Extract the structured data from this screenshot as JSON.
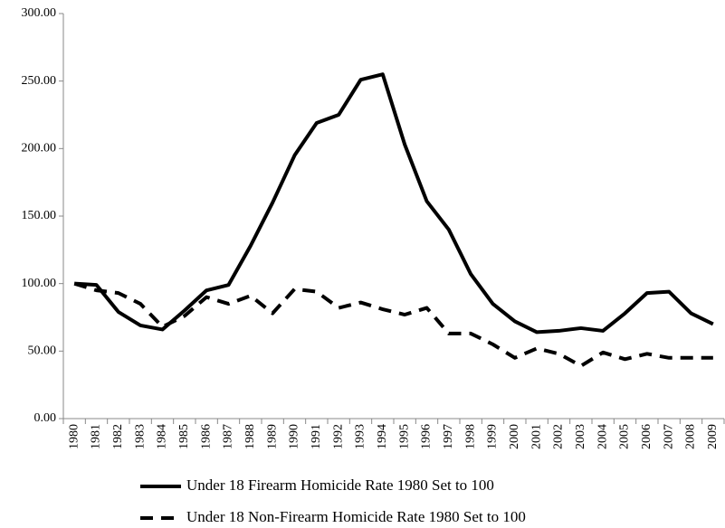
{
  "chart_data": {
    "type": "line",
    "categories": [
      "1980",
      "1981",
      "1982",
      "1983",
      "1984",
      "1985",
      "1986",
      "1987",
      "1988",
      "1989",
      "1990",
      "1991",
      "1992",
      "1993",
      "1994",
      "1995",
      "1996",
      "1997",
      "1998",
      "1999",
      "2000",
      "2001",
      "2002",
      "2003",
      "2004",
      "2005",
      "2006",
      "2007",
      "2008",
      "2009"
    ],
    "series": [
      {
        "name": "Under 18 Firearm Homicide Rate 1980 Set to 100",
        "color": "#000000",
        "style": "solid",
        "values": [
          100,
          99,
          79,
          69,
          66,
          80,
          95,
          99,
          128,
          160,
          195,
          219,
          225,
          251,
          255,
          203,
          161,
          140,
          107,
          85,
          72,
          64,
          65,
          67,
          65,
          78,
          93,
          94,
          78,
          70
        ]
      },
      {
        "name": "Under 18 Non-Firearm Homicide Rate 1980 Set to 100",
        "color": "#000000",
        "style": "dashed",
        "values": [
          100,
          95,
          93,
          85,
          68,
          76,
          90,
          85,
          91,
          78,
          96,
          94,
          82,
          86,
          81,
          77,
          82,
          63,
          63,
          55,
          45,
          52,
          48,
          39,
          49,
          44,
          48,
          45,
          45,
          45
        ]
      }
    ],
    "ylim": [
      0,
      300
    ],
    "yticks": [
      {
        "value": 0,
        "label": "0.00"
      },
      {
        "value": 50,
        "label": "50.00"
      },
      {
        "value": 100,
        "label": "100.00"
      },
      {
        "value": 150,
        "label": "150.00"
      },
      {
        "value": 200,
        "label": "200.00"
      },
      {
        "value": 250,
        "label": "250.00"
      },
      {
        "value": 300,
        "label": "300.00"
      }
    ],
    "grid": false,
    "legend": "bottom"
  }
}
